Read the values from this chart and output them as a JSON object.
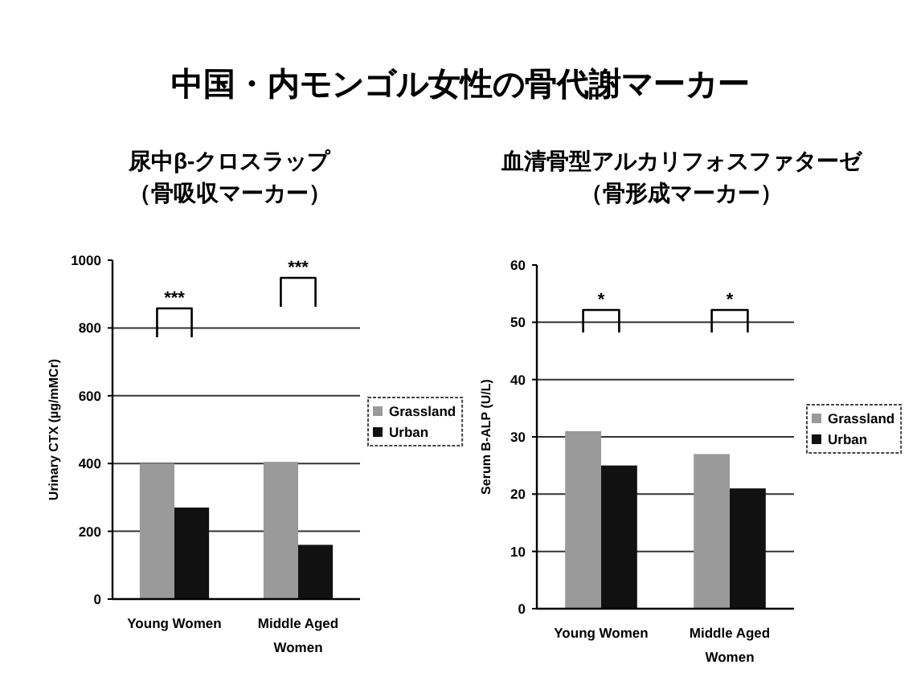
{
  "chart_data": [
    {
      "type": "bar",
      "title": "中国・内モンゴル女性の骨代謝マーカー",
      "subtitle": "尿中β-クロスラップ（骨吸収マーカー）",
      "ylabel": "Urinary CTX (µg/mMCr)",
      "categories": [
        "Young Women",
        "Middle Aged Women"
      ],
      "series": [
        {
          "name": "Grassland",
          "color": "#9a9a9a",
          "values": [
            400,
            405
          ]
        },
        {
          "name": "Urban",
          "color": "#111111",
          "values": [
            270,
            160
          ]
        }
      ],
      "ylim": [
        0,
        1000
      ],
      "yticks": [
        0,
        200,
        400,
        600,
        800,
        1000
      ],
      "grid": "y",
      "legend": "right",
      "annotations": [
        "***",
        "***"
      ]
    },
    {
      "type": "bar",
      "subtitle": "血清骨型アルカリフォスファターゼ（骨形成マーカー）",
      "ylabel": "Serum B-ALP (U/L)",
      "categories": [
        "Young Women",
        "Middle Aged Women"
      ],
      "series": [
        {
          "name": "Grassland",
          "color": "#9a9a9a",
          "values": [
            31,
            27
          ]
        },
        {
          "name": "Urban",
          "color": "#111111",
          "values": [
            25,
            21
          ]
        }
      ],
      "ylim": [
        0,
        60
      ],
      "yticks": [
        0,
        10,
        20,
        30,
        40,
        50,
        60
      ],
      "grid": "y",
      "legend": "right",
      "annotations": [
        "*",
        "*"
      ]
    }
  ]
}
